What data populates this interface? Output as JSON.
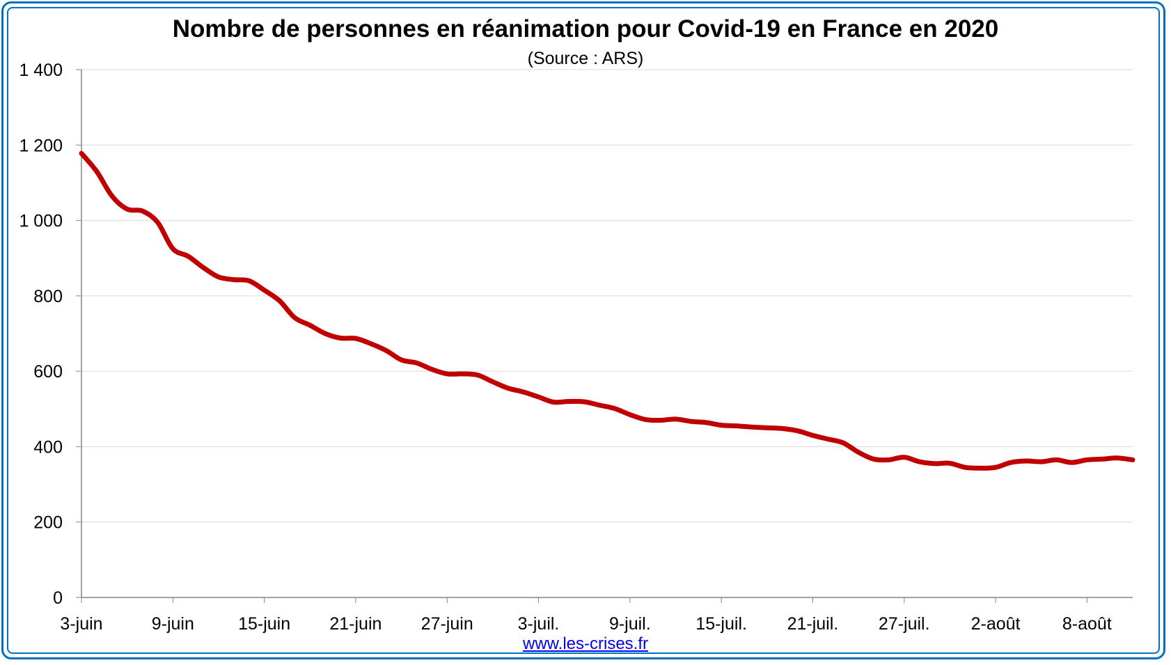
{
  "page": {
    "source_link": "www.les-crises.fr"
  },
  "chart_data": {
    "type": "line",
    "title": "Nombre de personnes en réanimation pour Covid-19 en France en 2020",
    "subtitle": "(Source : ARS)",
    "xlabel": "",
    "ylabel": "",
    "ylim": [
      0,
      1400
    ],
    "y_ticks": [
      0,
      200,
      400,
      600,
      800,
      1000,
      1200,
      1400
    ],
    "y_tick_labels": [
      "0",
      "200",
      "400",
      "600",
      "800",
      "1 000",
      "1 200",
      "1 400"
    ],
    "x_tick_labels": [
      "3-juin",
      "9-juin",
      "15-juin",
      "21-juin",
      "27-juin",
      "3-juil.",
      "9-juil.",
      "15-juil.",
      "21-juil.",
      "27-juil.",
      "2-août",
      "8-août"
    ],
    "grid": true,
    "legend": "none",
    "line_color": "#c00000",
    "series": [
      {
        "x": [
          "3-juin",
          "4-juin",
          "5-juin",
          "6-juin",
          "7-juin",
          "8-juin",
          "9-juin",
          "10-juin",
          "11-juin",
          "12-juin",
          "13-juin",
          "14-juin",
          "15-juin",
          "16-juin",
          "17-juin",
          "18-juin",
          "19-juin",
          "20-juin",
          "21-juin",
          "22-juin",
          "23-juin",
          "24-juin",
          "25-juin",
          "26-juin",
          "27-juin",
          "28-juin",
          "29-juin",
          "30-juin",
          "1-juil.",
          "2-juil.",
          "3-juil.",
          "4-juil.",
          "5-juil.",
          "6-juil.",
          "7-juil.",
          "8-juil.",
          "9-juil.",
          "10-juil.",
          "11-juil.",
          "12-juil.",
          "13-juil.",
          "14-juil.",
          "15-juil.",
          "16-juil.",
          "17-juil.",
          "18-juil.",
          "19-juil.",
          "20-juil.",
          "21-juil.",
          "22-juil.",
          "23-juil.",
          "24-juil.",
          "25-juil.",
          "26-juil.",
          "27-juil.",
          "28-juil.",
          "29-juil.",
          "30-juil.",
          "31-juil.",
          "1-août",
          "2-août",
          "3-août",
          "4-août",
          "5-août",
          "6-août",
          "7-août",
          "8-août",
          "9-août",
          "10-août",
          "11-août"
        ],
        "values": [
          1178,
          1130,
          1065,
          1030,
          1025,
          995,
          925,
          905,
          875,
          850,
          843,
          840,
          815,
          787,
          742,
          722,
          700,
          688,
          687,
          673,
          655,
          630,
          622,
          605,
          593,
          593,
          590,
          572,
          555,
          545,
          532,
          518,
          520,
          519,
          510,
          501,
          485,
          472,
          470,
          473,
          467,
          464,
          457,
          455,
          452,
          450,
          448,
          442,
          430,
          420,
          410,
          385,
          367,
          365,
          372,
          360,
          355,
          356,
          345,
          343,
          345,
          358,
          362,
          360,
          365,
          358,
          365,
          367,
          370,
          365
        ]
      }
    ]
  }
}
